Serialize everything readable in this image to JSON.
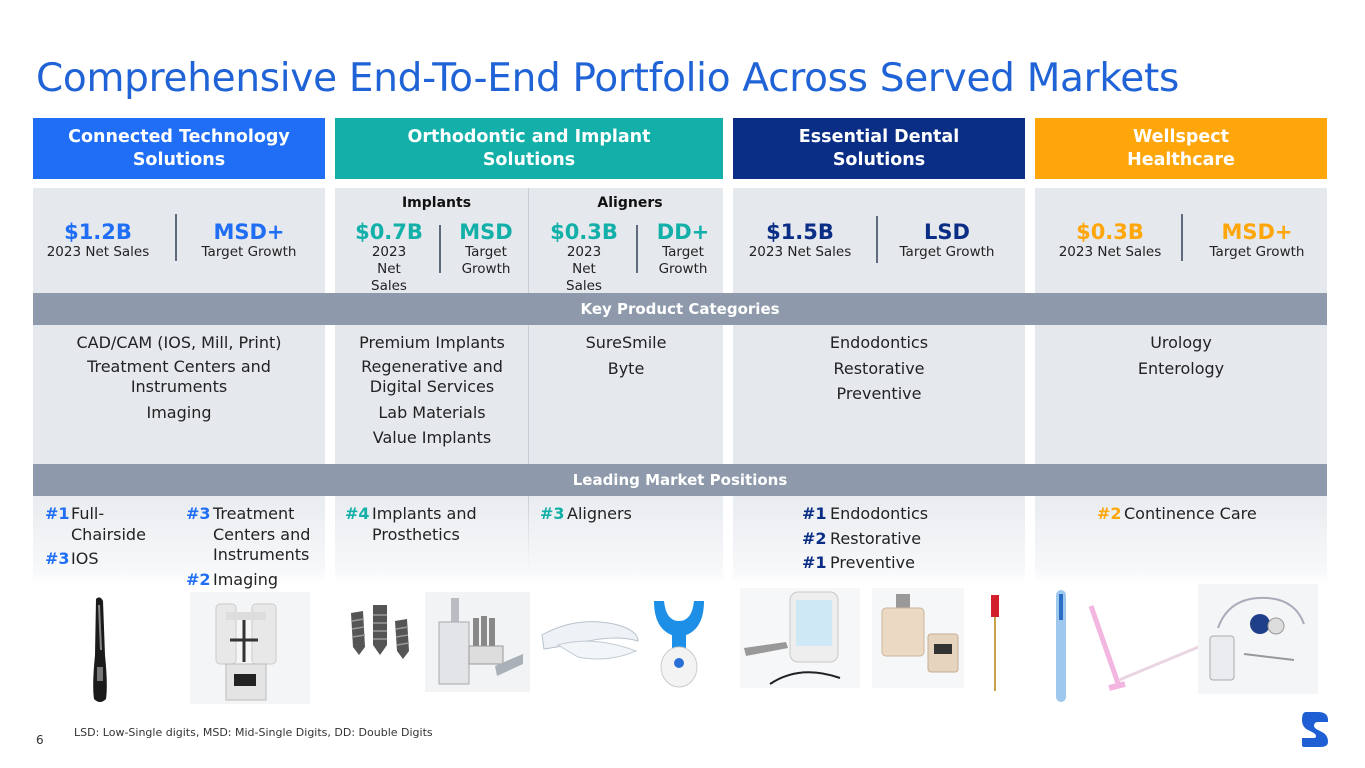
{
  "title": "Comprehensive End-To-End Portfolio Across Served Markets",
  "colors": {
    "title": "#1f63d6",
    "cts": "#1f6ef5",
    "oi": "#12b0a8",
    "eds": "#0a2e86",
    "ws": "#ffa60a",
    "band": "#8e9aab"
  },
  "headers": {
    "cts": "Connected Technology Solutions",
    "oi": "Orthodontic and Implant Solutions",
    "eds": "Essential Dental Solutions",
    "ws": "Wellspect Healthcare"
  },
  "metrics": {
    "cts": {
      "sales": "$1.2B",
      "sales_label": "2023 Net Sales",
      "growth": "MSD+",
      "growth_label": "Target Growth"
    },
    "implants": {
      "heading": "Implants",
      "sales": "$0.7B",
      "sales_label": "2023 Net Sales",
      "growth": "MSD",
      "growth_label": "Target Growth"
    },
    "aligners": {
      "heading": "Aligners",
      "sales": "$0.3B",
      "sales_label": "2023 Net Sales",
      "growth": "DD+",
      "growth_label": "Target Growth"
    },
    "eds": {
      "sales": "$1.5B",
      "sales_label": "2023 Net Sales",
      "growth": "LSD",
      "growth_label": "Target Growth"
    },
    "ws": {
      "sales": "$0.3B",
      "sales_label": "2023 Net Sales",
      "growth": "MSD+",
      "growth_label": "Target Growth"
    }
  },
  "bands": {
    "categories": "Key Product Categories",
    "positions": "Leading Market Positions"
  },
  "categories": {
    "cts": [
      "CAD/CAM (IOS, Mill, Print)",
      "Treatment Centers and Instruments",
      "Imaging"
    ],
    "implants": [
      "Premium Implants",
      "Regenerative and Digital Services",
      "Lab Materials",
      "Value Implants"
    ],
    "aligners": [
      "SureSmile",
      "Byte"
    ],
    "eds": [
      "Endodontics",
      "Restorative",
      "Preventive"
    ],
    "ws": [
      "Urology",
      "Enterology"
    ]
  },
  "positions": {
    "cts_left": [
      {
        "rank": "#1",
        "text": "Full-Chairside"
      },
      {
        "rank": "#3",
        "text": "IOS"
      }
    ],
    "cts_right": [
      {
        "rank": "#3",
        "text": "Treatment Centers and Instruments"
      },
      {
        "rank": "#2",
        "text": "Imaging"
      }
    ],
    "implants": [
      {
        "rank": "#4",
        "text": "Implants and Prosthetics"
      }
    ],
    "aligners": [
      {
        "rank": "#3",
        "text": "Aligners"
      }
    ],
    "eds": [
      {
        "rank": "#1",
        "text": "Endodontics"
      },
      {
        "rank": "#2",
        "text": "Restorative"
      },
      {
        "rank": "#1",
        "text": "Preventive"
      }
    ],
    "ws": [
      {
        "rank": "#2",
        "text": "Continence Care"
      }
    ]
  },
  "footnote": "LSD: Low-Single digits, MSD: Mid-Single Digits, DD: Double Digits",
  "page_number": "6"
}
